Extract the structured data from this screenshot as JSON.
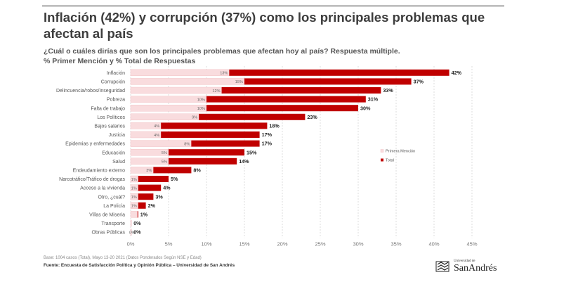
{
  "header": {
    "title": "Inflación (42%) y corrupción (37%) como los principales problemas que afectan al país",
    "subtitle_line1": "¿Cuál o cuáles dirías que son los principales problemas que afectan hoy al país? Respuesta múltiple.",
    "subtitle_line2": "% Primer Mención y % Total de Respuestas"
  },
  "chart_data": {
    "type": "bar",
    "orientation": "horizontal",
    "categories": [
      "Inflación",
      "Corrupción",
      "Delincuencia/robos/Inseguridad",
      "Pobreza",
      "Falta de trabajo",
      "Los Políticos",
      "Bajos salarios",
      "Justicia",
      "Epidemias y enfermedades",
      "Educación",
      "Salud",
      "Endeudamiento externo",
      "Narcotráfico/Tráfico de drogas",
      "Acceso a la vivienda",
      "Otro, ¿cuál?",
      "La Policía",
      "Villas de Miseria",
      "Transporte",
      "Obras Públicas"
    ],
    "series": [
      {
        "name": "Primera Mención",
        "color": "#f9dcde",
        "values": [
          13,
          15,
          12,
          10,
          10,
          9,
          4,
          4,
          8,
          5,
          5,
          3,
          1,
          1,
          1,
          1,
          1,
          0,
          0
        ],
        "labels": [
          "13%",
          "15%",
          "12%",
          "10%",
          "10%",
          "9%",
          "4%",
          "4%",
          "8%",
          "5%",
          "5%",
          "3%",
          "1%",
          "1%",
          "1%",
          "1%",
          "",
          "",
          "0%"
        ]
      },
      {
        "name": "Total",
        "color": "#c00000",
        "values": [
          42,
          37,
          33,
          31,
          30,
          23,
          18,
          17,
          17,
          15,
          14,
          8,
          5,
          4,
          3,
          2,
          1,
          0,
          0
        ],
        "labels": [
          "42%",
          "37%",
          "33%",
          "31%",
          "30%",
          "23%",
          "18%",
          "17%",
          "17%",
          "15%",
          "14%",
          "8%",
          "5%",
          "4%",
          "3%",
          "2%",
          "1%",
          "0%",
          "0%"
        ]
      }
    ],
    "xlim": [
      0,
      45
    ],
    "xticks": [
      0,
      5,
      10,
      15,
      20,
      25,
      30,
      35,
      40,
      45
    ],
    "xtick_labels": [
      "0%",
      "5%",
      "10%",
      "15%",
      "20%",
      "25%",
      "30%",
      "35%",
      "40%",
      "45%"
    ],
    "grid": "vertical dashed",
    "legend_position": "right",
    "legend": [
      "Primera Mención",
      "Total"
    ]
  },
  "footer": {
    "note": "Base: 1004 casos (Total), Mayo 13-20 2021 (Datos Ponderados Según NSE y Edad)",
    "source": "Fuente: Encuesta de Satisfacción Política y Opinión Pública – Universidad de San Andrés"
  },
  "logo": {
    "line1": "Universidad de",
    "line2": "SanAndrés",
    "icon": "university-seal-icon"
  }
}
